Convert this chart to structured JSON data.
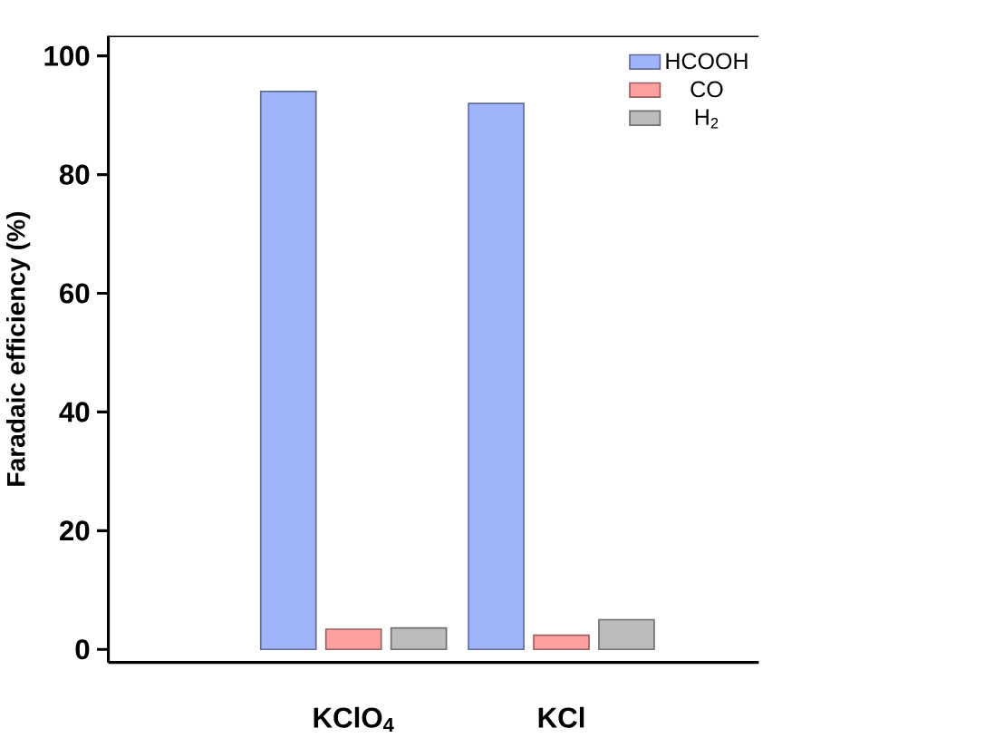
{
  "chart_data": {
    "type": "bar",
    "ylabel": "Faradaic efficiency (%)",
    "categories": [
      "KClO$_{4}$",
      "KCl"
    ],
    "series": [
      {
        "name": "HCOOH",
        "color": "#a0b4fc",
        "values": [
          94,
          92
        ]
      },
      {
        "name": "CO",
        "color": "#ffa0a0",
        "values": [
          3.4,
          2.4
        ]
      },
      {
        "name": "H$_{2}$",
        "color": "#bcbcbc",
        "values": [
          3.6,
          5.0
        ]
      }
    ],
    "ylim": [
      -2.2,
      103.4
    ],
    "yticks": [
      0,
      20,
      40,
      60,
      80,
      100
    ],
    "grid": false,
    "legend": "top right"
  }
}
